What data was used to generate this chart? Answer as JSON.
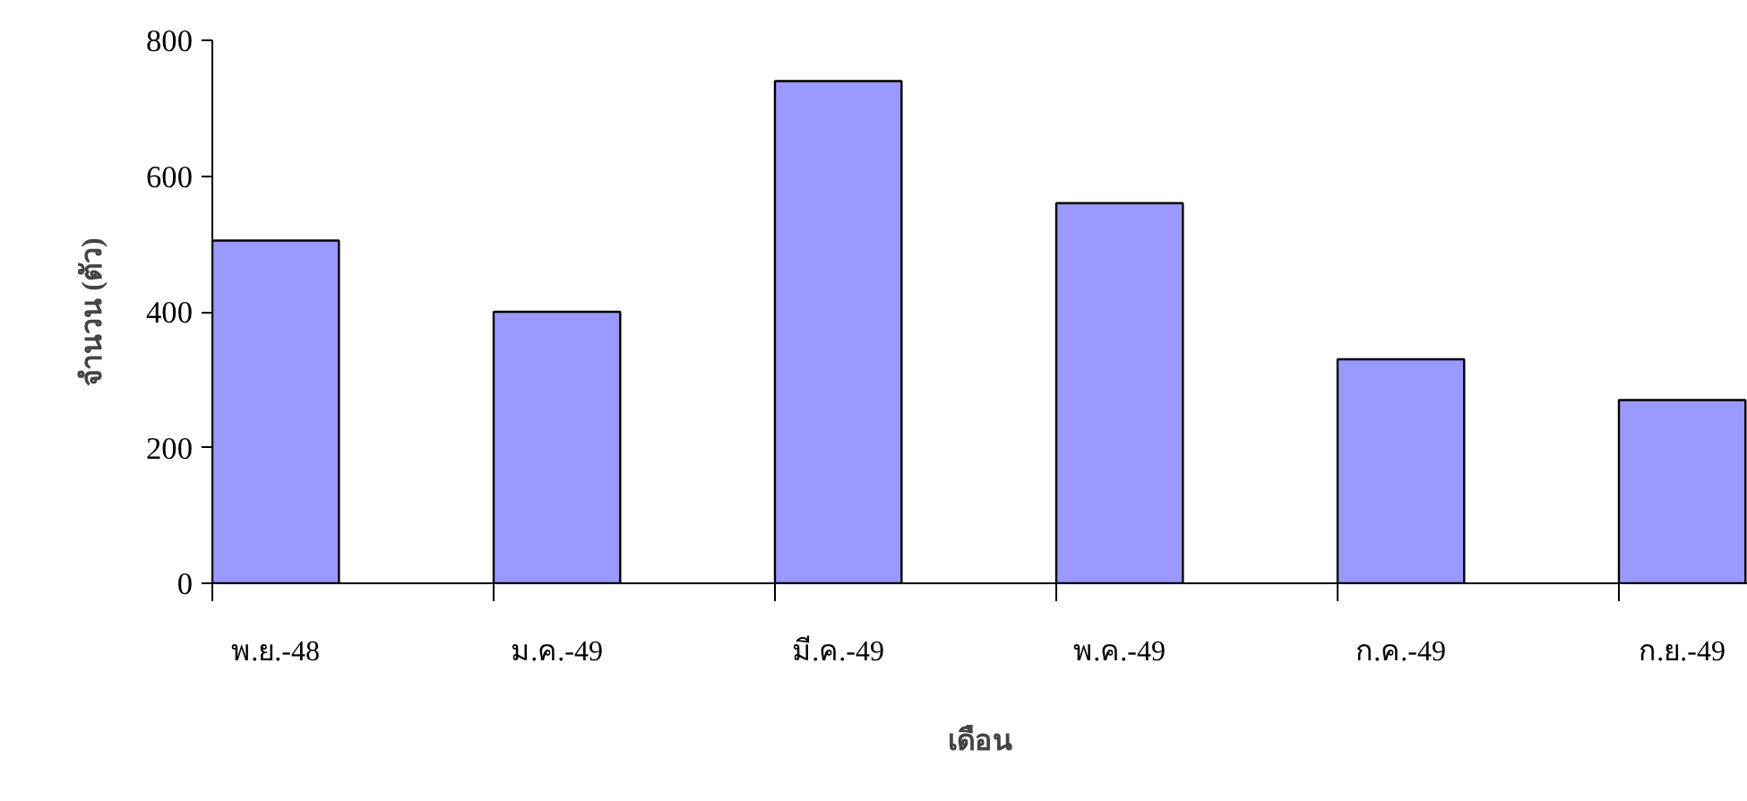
{
  "chart_data": {
    "type": "bar",
    "categories": [
      "พ.ย.-48",
      "ม.ค.-49",
      "มี.ค.-49",
      "พ.ค.-49",
      "ก.ค.-49",
      "ก.ย.-49"
    ],
    "values": [
      505,
      400,
      740,
      560,
      330,
      270
    ],
    "color": "#9999ff",
    "xlabel": "เดือน",
    "ylabel": "จำนวน (ตัว)",
    "ylim": [
      0,
      800
    ],
    "yticks": [
      0,
      200,
      400,
      600,
      800
    ],
    "grid": false
  }
}
